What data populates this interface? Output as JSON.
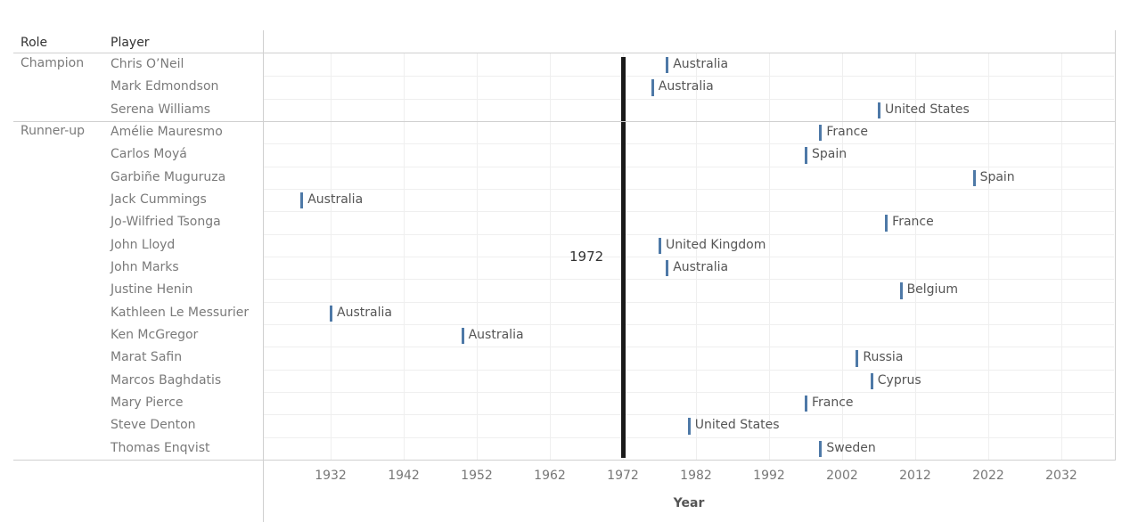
{
  "chart_data": {
    "type": "gantt",
    "row_headers": [
      "Role",
      "Player"
    ],
    "xlabel": "Year",
    "xlim": [
      1923,
      2039
    ],
    "x_ticks": [
      1932,
      1942,
      1952,
      1962,
      1972,
      1982,
      1992,
      2002,
      2012,
      2022,
      2032
    ],
    "reference_line": {
      "value": 1972,
      "label": "1972"
    },
    "mark_color": "#4e79a7",
    "groups": [
      {
        "role": "Champion",
        "rows": [
          {
            "player": "Chris O’Neil",
            "year": 1978,
            "label": "Australia"
          },
          {
            "player": "Mark Edmondson",
            "year": 1976,
            "label": "Australia"
          },
          {
            "player": "Serena Williams",
            "year": 2007,
            "label": "United States"
          }
        ]
      },
      {
        "role": "Runner-up",
        "rows": [
          {
            "player": "Amélie Mauresmo",
            "year": 1999,
            "label": "France"
          },
          {
            "player": "Carlos Moyá",
            "year": 1997,
            "label": "Spain"
          },
          {
            "player": "Garbiñe Muguruza",
            "year": 2020,
            "label": "Spain"
          },
          {
            "player": "Jack Cummings",
            "year": 1928,
            "label": "Australia"
          },
          {
            "player": "Jo-Wilfried Tsonga",
            "year": 2008,
            "label": "France"
          },
          {
            "player": "John Lloyd",
            "year": 1977,
            "label": "United Kingdom"
          },
          {
            "player": "John Marks",
            "year": 1978,
            "label": "Australia"
          },
          {
            "player": "Justine Henin",
            "year": 2010,
            "label": "Belgium"
          },
          {
            "player": "Kathleen Le Messurier",
            "year": 1932,
            "label": "Australia"
          },
          {
            "player": "Ken McGregor",
            "year": 1950,
            "label": "Australia"
          },
          {
            "player": "Marat Safin",
            "year": 2004,
            "label": "Russia"
          },
          {
            "player": "Marcos Baghdatis",
            "year": 2006,
            "label": "Cyprus"
          },
          {
            "player": "Mary Pierce",
            "year": 1997,
            "label": "France"
          },
          {
            "player": "Steve Denton",
            "year": 1981,
            "label": "United States"
          },
          {
            "player": "Thomas Enqvist",
            "year": 1999,
            "label": "Sweden"
          }
        ]
      }
    ]
  }
}
